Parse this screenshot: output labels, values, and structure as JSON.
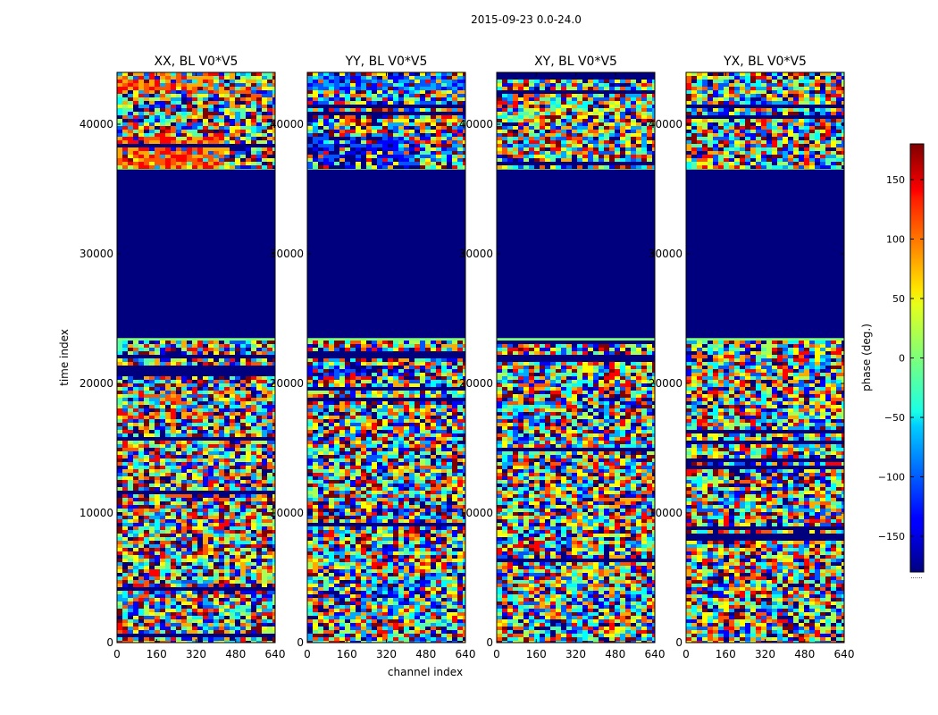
{
  "chart_data": {
    "type": "heatmap",
    "suptitle": "2015-09-23 0.0-24.0",
    "xlabel": "channel index",
    "ylabel": "time index",
    "xlim": [
      0,
      640
    ],
    "ylim": [
      0,
      44000
    ],
    "xticks": [
      0,
      160,
      320,
      480,
      640
    ],
    "yticks": [
      0,
      10000,
      20000,
      30000,
      40000
    ],
    "panels": [
      {
        "title": "XX, BL V0*V5",
        "pol": "XX"
      },
      {
        "title": "YY, BL V0*V5",
        "pol": "YY"
      },
      {
        "title": "XY, BL V0*V5",
        "pol": "XY"
      },
      {
        "title": "YX, BL V0*V5",
        "pol": "YX"
      }
    ],
    "flagged_time_range": [
      23500,
      36500
    ],
    "colorbar": {
      "label": "phase (deg.)",
      "range": [
        -180,
        180
      ],
      "ticks": [
        -150,
        -100,
        -50,
        0,
        50,
        100,
        150
      ],
      "colormap": "jet",
      "footer": "......"
    }
  }
}
